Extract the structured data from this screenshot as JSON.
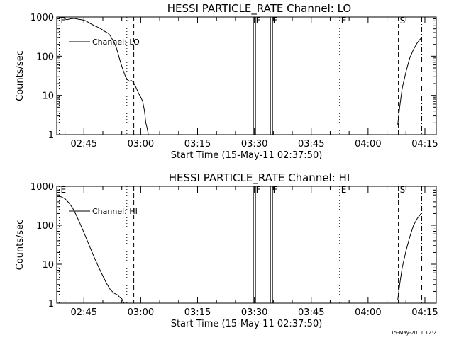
{
  "stamp": "15-May-2011 12:21",
  "colors": {
    "background": "#ffffff",
    "ink": "#000000"
  },
  "chart_data": [
    {
      "type": "line",
      "title": "HESSI PARTICLE_RATE Channel: LO",
      "ylabel": "Counts/sec",
      "xlabel": "Start Time (15-May-11 02:37:50)",
      "yscale": "log",
      "ylim": [
        1,
        1000
      ],
      "xlim": [
        "02:37:50",
        "04:18:00"
      ],
      "yticks": [
        "1",
        "10",
        "100",
        "1000"
      ],
      "xticks": [
        "02:45",
        "03:00",
        "03:15",
        "03:30",
        "03:45",
        "04:00",
        "04:15"
      ],
      "legend": {
        "position": "top-left",
        "label": "Channel: LO"
      },
      "markers": [
        {
          "label": "E",
          "time": "02:38:30",
          "style": "dotted"
        },
        {
          "label": "",
          "time": "02:56:20",
          "style": "dotted"
        },
        {
          "label": "",
          "time": "02:58:10",
          "style": "dashed"
        },
        {
          "label": "F",
          "time": "03:30:00",
          "style": "double"
        },
        {
          "label": "F",
          "time": "03:34:30",
          "style": "double"
        },
        {
          "label": "E",
          "time": "03:52:30",
          "style": "dotted"
        },
        {
          "label": "S",
          "time": "04:08:00",
          "style": "dashed"
        },
        {
          "label": "",
          "time": "04:14:10",
          "style": "dashdot"
        }
      ],
      "segments": [
        {
          "x": [
            "02:37:50",
            "02:38:30",
            "02:39:30",
            "02:40:30",
            "02:41:30",
            "02:42:30",
            "02:43:30",
            "02:44:30",
            "02:45:30",
            "02:46:30",
            "02:47:30",
            "02:48:30",
            "02:49:30",
            "02:50:30",
            "02:51:30",
            "02:52:00",
            "02:52:30",
            "02:53:00",
            "02:53:30",
            "02:54:00",
            "02:54:30",
            "02:55:00",
            "02:55:30",
            "02:56:00",
            "02:56:30",
            "02:57:00",
            "02:57:30",
            "02:58:00",
            "02:58:30",
            "02:59:00",
            "02:59:30",
            "03:00:00",
            "03:00:30",
            "03:01:00",
            "03:01:20",
            "03:01:40",
            "03:02:00"
          ],
          "y": [
            1000,
            1000,
            950,
            850,
            900,
            920,
            880,
            850,
            800,
            700,
            620,
            560,
            500,
            430,
            380,
            330,
            270,
            220,
            170,
            120,
            80,
            55,
            40,
            30,
            25,
            23,
            24,
            22,
            18,
            14,
            11,
            9,
            7,
            4,
            2,
            1.5,
            1.0
          ]
        },
        {
          "x": [
            "04:07:50",
            "04:08:20",
            "04:09:00",
            "04:10:00",
            "04:11:00",
            "04:12:00",
            "04:13:00",
            "04:14:00"
          ],
          "y": [
            1.8,
            5,
            15,
            40,
            90,
            150,
            220,
            290
          ]
        }
      ]
    },
    {
      "type": "line",
      "title": "HESSI PARTICLE_RATE Channel: HI",
      "ylabel": "Counts/sec",
      "xlabel": "Start Time (15-May-11 02:37:50)",
      "yscale": "log",
      "ylim": [
        1,
        1000
      ],
      "xlim": [
        "02:37:50",
        "04:18:00"
      ],
      "yticks": [
        "1",
        "10",
        "100",
        "1000"
      ],
      "xticks": [
        "02:45",
        "03:00",
        "03:15",
        "03:30",
        "03:45",
        "04:00",
        "04:15"
      ],
      "legend": {
        "position": "top-left",
        "label": "Channel: HI"
      },
      "markers": [
        {
          "label": "E",
          "time": "02:38:30",
          "style": "dotted"
        },
        {
          "label": "",
          "time": "02:56:20",
          "style": "dotted"
        },
        {
          "label": "",
          "time": "02:58:10",
          "style": "dashed"
        },
        {
          "label": "F",
          "time": "03:30:00",
          "style": "double"
        },
        {
          "label": "F",
          "time": "03:34:30",
          "style": "double"
        },
        {
          "label": "E",
          "time": "03:52:30",
          "style": "dotted"
        },
        {
          "label": "S",
          "time": "04:08:00",
          "style": "dashed"
        },
        {
          "label": "",
          "time": "04:14:10",
          "style": "dashdot"
        }
      ],
      "segments": [
        {
          "x": [
            "02:37:50",
            "02:39:00",
            "02:40:00",
            "02:41:00",
            "02:42:00",
            "02:43:00",
            "02:44:00",
            "02:45:00",
            "02:46:00",
            "02:47:00",
            "02:48:00",
            "02:49:00",
            "02:50:00",
            "02:51:00",
            "02:52:00",
            "02:53:00",
            "02:54:00",
            "02:54:30",
            "02:55:00",
            "02:55:20",
            "02:55:40"
          ],
          "y": [
            550,
            540,
            480,
            380,
            280,
            180,
            110,
            65,
            38,
            22,
            13,
            8,
            5,
            3.2,
            2.2,
            1.8,
            1.6,
            1.4,
            1.3,
            1.1,
            1.0
          ]
        },
        {
          "x": [
            "04:07:50",
            "04:08:20",
            "04:09:00",
            "04:10:00",
            "04:11:00",
            "04:12:00",
            "04:13:00",
            "04:14:00"
          ],
          "y": [
            1.2,
            3,
            8,
            22,
            50,
            100,
            150,
            200
          ]
        }
      ]
    }
  ]
}
